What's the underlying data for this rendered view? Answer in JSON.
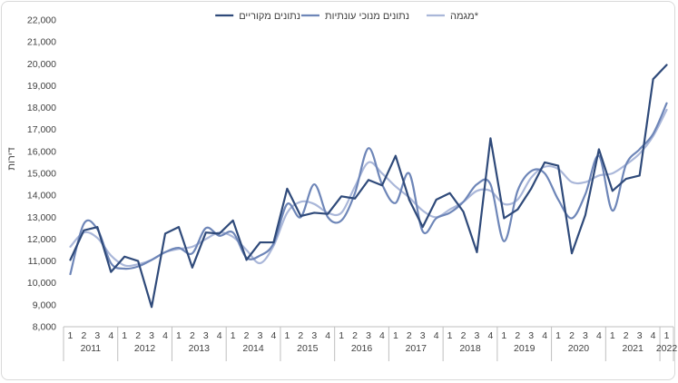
{
  "chart_data": {
    "type": "line",
    "ylabel": "דירות",
    "ylim": [
      8000,
      22000
    ],
    "yticks": [
      8000,
      9000,
      10000,
      11000,
      12000,
      13000,
      14000,
      15000,
      16000,
      17000,
      18000,
      19000,
      20000,
      21000,
      22000
    ],
    "ytick_labels": [
      "8,000",
      "9,000",
      "10,000",
      "11,000",
      "12,000",
      "13,000",
      "14,000",
      "15,000",
      "16,000",
      "17,000",
      "18,000",
      "19,000",
      "20,000",
      "21,000",
      "22,000"
    ],
    "quarter_labels": [
      "1",
      "2",
      "3",
      "4",
      "1",
      "2",
      "3",
      "4",
      "1",
      "2",
      "3",
      "4",
      "1",
      "2",
      "3",
      "4",
      "1",
      "2",
      "3",
      "4",
      "1",
      "2",
      "3",
      "4",
      "1",
      "2",
      "3",
      "4",
      "1",
      "2",
      "3",
      "4",
      "1",
      "2",
      "3",
      "4",
      "1",
      "2",
      "3",
      "4",
      "1",
      "2",
      "3",
      "4",
      "1"
    ],
    "years": [
      {
        "label": "2011",
        "start": 0,
        "count": 4
      },
      {
        "label": "2012",
        "start": 4,
        "count": 4
      },
      {
        "label": "2013",
        "start": 8,
        "count": 4
      },
      {
        "label": "2014",
        "start": 12,
        "count": 4
      },
      {
        "label": "2015",
        "start": 16,
        "count": 4
      },
      {
        "label": "2016",
        "start": 20,
        "count": 4
      },
      {
        "label": "2017",
        "start": 24,
        "count": 4
      },
      {
        "label": "2018",
        "start": 28,
        "count": 4
      },
      {
        "label": "2019",
        "start": 32,
        "count": 4
      },
      {
        "label": "2020",
        "start": 36,
        "count": 4
      },
      {
        "label": "2021",
        "start": 40,
        "count": 4
      },
      {
        "label": "2022",
        "start": 44,
        "count": 1
      }
    ],
    "legend_position": "top",
    "grid": false,
    "series": [
      {
        "name": "נתונים מקוריים",
        "color": "#2f4a7a",
        "smooth": false,
        "values": [
          11050,
          12400,
          12550,
          10500,
          11200,
          11000,
          8900,
          12250,
          12550,
          10700,
          12300,
          12250,
          12850,
          11050,
          11850,
          11850,
          14300,
          13050,
          13200,
          13150,
          13950,
          13850,
          14700,
          14450,
          15800,
          13800,
          12550,
          13800,
          14100,
          13250,
          11400,
          16600,
          12950,
          13350,
          14300,
          15500,
          15350,
          11350,
          13100,
          16100,
          14200,
          14750,
          14900,
          19300,
          19950
        ]
      },
      {
        "name": "נתונים מנוכי עונתיות",
        "color": "#6e86b8",
        "smooth": true,
        "values": [
          10400,
          12700,
          12450,
          10900,
          10650,
          10750,
          11050,
          11400,
          11600,
          11350,
          12500,
          12150,
          12300,
          11150,
          11250,
          11800,
          13600,
          13000,
          14500,
          13000,
          12850,
          14100,
          16150,
          14500,
          13650,
          15000,
          12350,
          12950,
          13200,
          13700,
          14500,
          14500,
          11900,
          14200,
          15100,
          15000,
          13800,
          12950,
          14050,
          15800,
          13300,
          15400,
          16100,
          16800,
          18200
        ]
      },
      {
        "name": "מגמה*",
        "color": "#aab7d9",
        "smooth": true,
        "values": [
          11650,
          12300,
          12050,
          11250,
          10800,
          10850,
          11050,
          11400,
          11550,
          11650,
          12000,
          12300,
          12100,
          11500,
          10900,
          11700,
          13200,
          13700,
          13600,
          13200,
          13200,
          14400,
          15500,
          15000,
          14400,
          13900,
          13300,
          13000,
          13350,
          13700,
          14200,
          14200,
          13600,
          13800,
          14800,
          15300,
          15200,
          14600,
          14600,
          14900,
          15000,
          15400,
          15900,
          16700,
          17900
        ]
      }
    ]
  }
}
